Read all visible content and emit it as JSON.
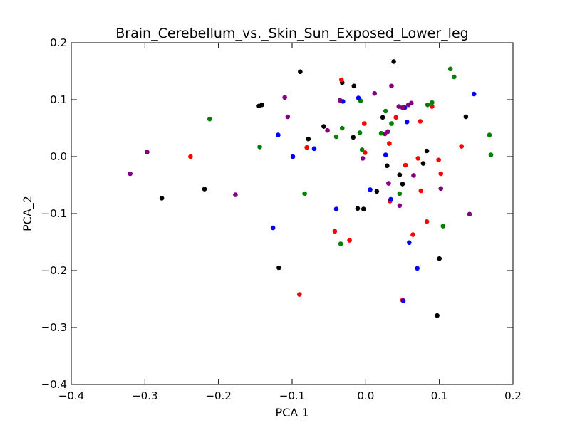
{
  "chart_data": {
    "type": "scatter",
    "title": "Brain_Cerebellum_vs._Skin_Sun_Exposed_Lower_leg",
    "xlabel": "PCA 1",
    "ylabel": "PCA_2",
    "xlim": [
      -0.4,
      0.2
    ],
    "ylim": [
      -0.4,
      0.2
    ],
    "xticks": [
      -0.4,
      -0.3,
      -0.2,
      -0.1,
      0.0,
      0.1,
      0.2
    ],
    "yticks": [
      -0.4,
      -0.3,
      -0.2,
      -0.1,
      0.0,
      0.1,
      0.2
    ],
    "xtick_labels": [
      "−0.4",
      "−0.3",
      "−0.2",
      "−0.1",
      "0.0",
      "0.1",
      "0.2"
    ],
    "ytick_labels": [
      "−0.4",
      "−0.3",
      "−0.2",
      "−0.1",
      "0.0",
      "0.1",
      "0.2"
    ],
    "grid": false,
    "legend": "none",
    "series": [
      {
        "color": "#000000",
        "points": [
          [
            -0.089,
            0.149
          ],
          [
            0.038,
            0.167
          ],
          [
            -0.016,
            0.124
          ],
          [
            -0.032,
            0.13
          ],
          [
            -0.145,
            0.089
          ],
          [
            -0.141,
            0.091
          ],
          [
            -0.057,
            0.053
          ],
          [
            -0.078,
            0.031
          ],
          [
            -0.017,
            0.034
          ],
          [
            0.023,
            0.069
          ],
          [
            0.136,
            0.07
          ],
          [
            0.083,
            0.01
          ],
          [
            0.029,
            -0.016
          ],
          [
            0.046,
            -0.032
          ],
          [
            0.078,
            -0.012
          ],
          [
            0.05,
            -0.048
          ],
          [
            -0.277,
            -0.073
          ],
          [
            -0.219,
            -0.057
          ],
          [
            -0.011,
            -0.091
          ],
          [
            -0.003,
            -0.092
          ],
          [
            0.015,
            -0.061
          ],
          [
            -0.118,
            -0.195
          ],
          [
            0.1,
            -0.179
          ],
          [
            0.097,
            -0.279
          ]
        ]
      },
      {
        "color": "#ff0000",
        "points": [
          [
            -0.033,
            0.135
          ],
          [
            0.09,
            0.088
          ],
          [
            0.041,
            0.069
          ],
          [
            -0.002,
            0.058
          ],
          [
            0.074,
            0.062
          ],
          [
            0.032,
            0.023
          ],
          [
            -0.08,
            0.016
          ],
          [
            -0.001,
            0.007
          ],
          [
            0.13,
            0.018
          ],
          [
            -0.238,
            0.0
          ],
          [
            0.099,
            -0.006
          ],
          [
            0.054,
            -0.015
          ],
          [
            0.071,
            -0.003
          ],
          [
            0.102,
            -0.03
          ],
          [
            0.075,
            -0.06
          ],
          [
            0.033,
            -0.078
          ],
          [
            -0.042,
            -0.131
          ],
          [
            -0.022,
            -0.147
          ],
          [
            0.083,
            -0.114
          ],
          [
            0.064,
            -0.137
          ],
          [
            -0.09,
            -0.242
          ],
          [
            0.05,
            -0.252
          ]
        ]
      },
      {
        "color": "#008000",
        "points": [
          [
            0.115,
            0.154
          ],
          [
            0.12,
            0.14
          ],
          [
            0.09,
            0.095
          ],
          [
            0.084,
            0.091
          ],
          [
            -0.212,
            0.066
          ],
          [
            -0.007,
            0.098
          ],
          [
            0.027,
            0.08
          ],
          [
            0.035,
            0.058
          ],
          [
            -0.032,
            0.05
          ],
          [
            0.021,
            0.041
          ],
          [
            -0.008,
            0.042
          ],
          [
            -0.04,
            0.035
          ],
          [
            0.168,
            0.038
          ],
          [
            0.17,
            0.003
          ],
          [
            -0.144,
            0.017
          ],
          [
            -0.005,
            0.012
          ],
          [
            -0.083,
            -0.065
          ],
          [
            0.046,
            -0.065
          ],
          [
            0.105,
            -0.122
          ],
          [
            -0.034,
            -0.153
          ]
        ]
      },
      {
        "color": "#0000ff",
        "points": [
          [
            0.147,
            0.11
          ],
          [
            -0.01,
            0.103
          ],
          [
            -0.031,
            0.097
          ],
          [
            0.053,
            0.086
          ],
          [
            0.056,
            0.061
          ],
          [
            -0.119,
            0.038
          ],
          [
            -0.099,
            0.0
          ],
          [
            -0.07,
            0.014
          ],
          [
            0.027,
            0.003
          ],
          [
            0.006,
            -0.058
          ],
          [
            0.034,
            -0.075
          ],
          [
            -0.04,
            -0.092
          ],
          [
            -0.126,
            -0.125
          ],
          [
            0.059,
            -0.151
          ],
          [
            0.07,
            -0.196
          ],
          [
            0.051,
            -0.253
          ]
        ]
      },
      {
        "color": "#800080",
        "points": [
          [
            0.035,
            0.124
          ],
          [
            0.012,
            0.111
          ],
          [
            -0.11,
            0.104
          ],
          [
            -0.035,
            0.099
          ],
          [
            0.045,
            0.088
          ],
          [
            0.05,
            0.086
          ],
          [
            0.058,
            0.091
          ],
          [
            0.062,
            0.094
          ],
          [
            -0.106,
            0.07
          ],
          [
            -0.052,
            0.046
          ],
          [
            0.03,
            0.044
          ],
          [
            0.026,
            0.04
          ],
          [
            -0.004,
            -0.003
          ],
          [
            -0.297,
            0.008
          ],
          [
            -0.32,
            -0.03
          ],
          [
            0.065,
            -0.033
          ],
          [
            0.031,
            -0.047
          ],
          [
            0.102,
            -0.056
          ],
          [
            -0.177,
            -0.067
          ],
          [
            0.046,
            -0.086
          ],
          [
            0.141,
            -0.101
          ]
        ]
      }
    ]
  }
}
